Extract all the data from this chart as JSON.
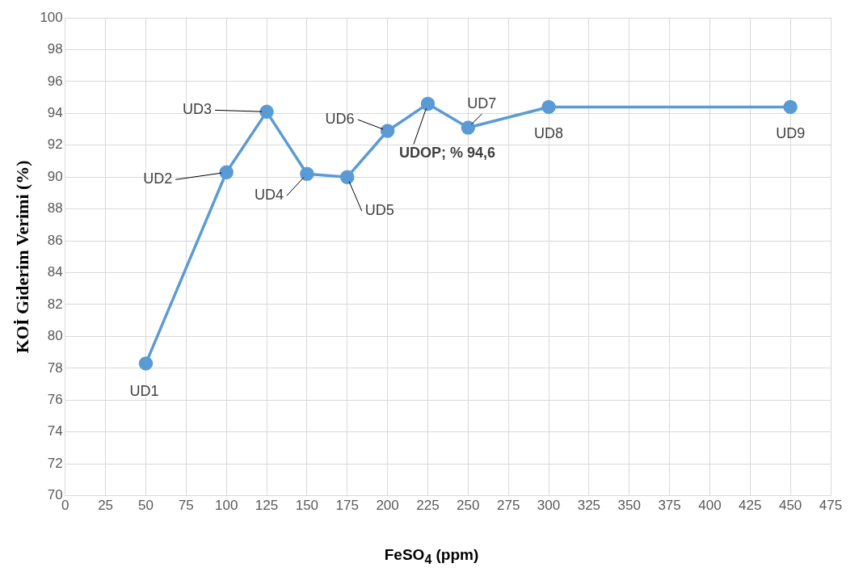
{
  "chart_data": {
    "type": "line",
    "xlabel": "FeSO$_{4}$ (ppm)",
    "ylabel": "KOİ Giderim Verimi (%)",
    "x": [
      50,
      100,
      125,
      150,
      175,
      200,
      225,
      250,
      300,
      450
    ],
    "series": [
      {
        "color": "#5b9bd5",
        "values": [
          78.3,
          90.3,
          94.1,
          90.2,
          90.0,
          92.9,
          94.6,
          93.1,
          94.4,
          94.4
        ]
      }
    ],
    "xlim": [
      0,
      475
    ],
    "xticks": [
      0,
      25,
      50,
      75,
      100,
      125,
      150,
      175,
      200,
      225,
      250,
      275,
      300,
      325,
      350,
      375,
      400,
      425,
      450,
      475
    ],
    "ylim": [
      70,
      100
    ],
    "yticks": [
      70,
      72,
      74,
      76,
      78,
      80,
      82,
      84,
      86,
      88,
      90,
      92,
      94,
      96,
      98,
      100
    ],
    "grid": true,
    "legend": false,
    "marker": "circle",
    "line_style": "solid",
    "annotations": [
      {
        "text": "UD1",
        "x": 50,
        "y": 78.3
      },
      {
        "text": "UD2",
        "x": 100,
        "y": 90.3
      },
      {
        "text": "UD3",
        "x": 125,
        "y": 94.1
      },
      {
        "text": "UD4",
        "x": 150,
        "y": 90.2
      },
      {
        "text": "UD5",
        "x": 175,
        "y": 90.0
      },
      {
        "text": "UD6",
        "x": 200,
        "y": 92.9
      },
      {
        "text": "UDOP; % 94,6",
        "x": 225,
        "y": 94.6
      },
      {
        "text": "UD7",
        "x": 250,
        "y": 93.1
      },
      {
        "text": "UD8",
        "x": 300,
        "y": 94.4
      },
      {
        "text": "UD9",
        "x": 450,
        "y": 94.4
      }
    ]
  }
}
